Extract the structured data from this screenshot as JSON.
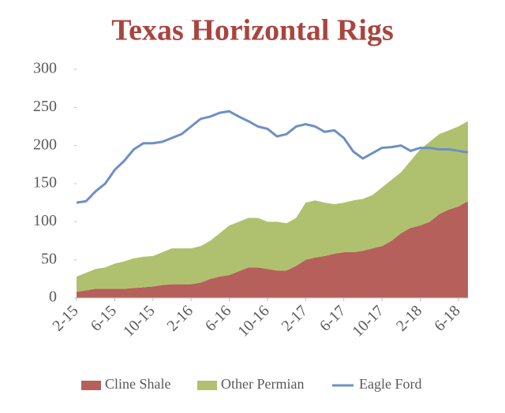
{
  "chart_data": {
    "type": "stacked_area_line",
    "title": "Texas Horizontal Rigs",
    "categories": [
      "2-15",
      null,
      null,
      null,
      "6-15",
      null,
      null,
      null,
      "10-15",
      null,
      null,
      null,
      "2-16",
      null,
      null,
      null,
      "6-16",
      null,
      null,
      null,
      "10-16",
      null,
      null,
      null,
      "2-17",
      null,
      null,
      null,
      "6-17",
      null,
      null,
      null,
      "10-17",
      null,
      null,
      null,
      "2-18",
      null,
      null,
      null,
      "6-18",
      null
    ],
    "series": [
      {
        "name": "Cline Shale",
        "kind": "area",
        "color": "#b5605a",
        "values": [
          8,
          10,
          12,
          12,
          12,
          12,
          13,
          14,
          15,
          17,
          18,
          18,
          18,
          20,
          25,
          28,
          30,
          35,
          40,
          40,
          38,
          36,
          36,
          42,
          50,
          53,
          55,
          58,
          60,
          60,
          62,
          65,
          68,
          75,
          85,
          92,
          95,
          100,
          110,
          116,
          120,
          127
        ]
      },
      {
        "name": "Other Permian",
        "kind": "area",
        "color": "#afc16e",
        "values": [
          20,
          23,
          26,
          28,
          33,
          36,
          39,
          40,
          40,
          43,
          47,
          47,
          47,
          48,
          50,
          57,
          65,
          65,
          65,
          65,
          62,
          64,
          62,
          63,
          75,
          75,
          70,
          65,
          65,
          68,
          68,
          70,
          77,
          80,
          80,
          88,
          100,
          105,
          105,
          104,
          105,
          105
        ]
      },
      {
        "name": "Eagle Ford",
        "kind": "line",
        "color": "#6e8fc6",
        "values": [
          125,
          127,
          140,
          150,
          168,
          180,
          195,
          203,
          203,
          205,
          210,
          215,
          225,
          235,
          238,
          243,
          245,
          238,
          232,
          225,
          222,
          212,
          215,
          225,
          228,
          225,
          218,
          220,
          210,
          192,
          183,
          190,
          197,
          198,
          200,
          193,
          197,
          197,
          195,
          195,
          193,
          191
        ]
      }
    ],
    "ylim": [
      0,
      300
    ],
    "yticks": [
      0,
      50,
      100,
      150,
      200,
      250,
      300
    ],
    "grid": false,
    "legend": "bottom"
  }
}
